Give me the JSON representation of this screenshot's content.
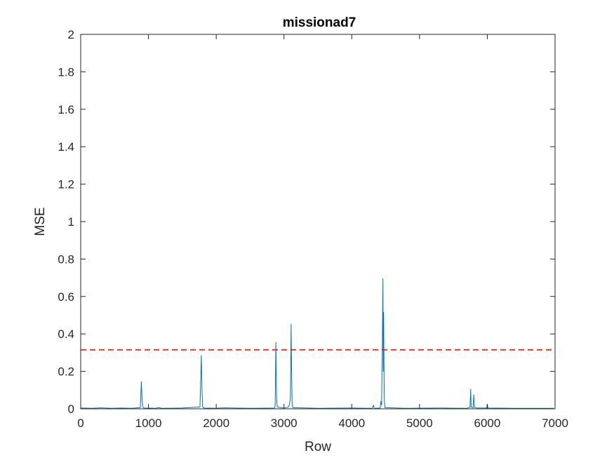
{
  "chart_data": {
    "type": "line",
    "title": "missionad7",
    "xlabel": "Row",
    "ylabel": "MSE",
    "xlim": [
      0,
      7000
    ],
    "ylim": [
      0,
      2
    ],
    "xticks": [
      0,
      1000,
      2000,
      3000,
      4000,
      5000,
      6000,
      7000
    ],
    "xtick_labels": [
      "0",
      "1000",
      "2000",
      "3000",
      "4000",
      "5000",
      "6000",
      "7000"
    ],
    "yticks": [
      0,
      0.2,
      0.4,
      0.6,
      0.8,
      1,
      1.2,
      1.4,
      1.6,
      1.8,
      2
    ],
    "ytick_labels": [
      "0",
      "0.2",
      "0.4",
      "0.6",
      "0.8",
      "1",
      "1.2",
      "1.4",
      "1.6",
      "1.8",
      "2"
    ],
    "grid": false,
    "series": [
      {
        "color": "#0072bd",
        "baseline_value": 0.003,
        "x_end": 6980,
        "points": [
          [
            0,
            0.004
          ],
          [
            150,
            0.003
          ],
          [
            300,
            0.005
          ],
          [
            450,
            0.003
          ],
          [
            600,
            0.004
          ],
          [
            750,
            0.003
          ],
          [
            880,
            0.006
          ],
          [
            895,
            0.145
          ],
          [
            905,
            0.06
          ],
          [
            915,
            0.01
          ],
          [
            930,
            0.004
          ],
          [
            1100,
            0.003
          ],
          [
            1150,
            0.006
          ],
          [
            1200,
            0.003
          ],
          [
            1500,
            0.004
          ],
          [
            1760,
            0.01
          ],
          [
            1770,
            0.14
          ],
          [
            1780,
            0.285
          ],
          [
            1790,
            0.1
          ],
          [
            1800,
            0.01
          ],
          [
            1820,
            0.004
          ],
          [
            2000,
            0.003
          ],
          [
            2100,
            0.005
          ],
          [
            2500,
            0.003
          ],
          [
            2860,
            0.004
          ],
          [
            2870,
            0.02
          ],
          [
            2880,
            0.355
          ],
          [
            2890,
            0.06
          ],
          [
            2900,
            0.01
          ],
          [
            2950,
            0.006
          ],
          [
            3000,
            0.004
          ],
          [
            3060,
            0.008
          ],
          [
            3080,
            0.02
          ],
          [
            3095,
            0.06
          ],
          [
            3105,
            0.452
          ],
          [
            3112,
            0.2
          ],
          [
            3120,
            0.03
          ],
          [
            3130,
            0.006
          ],
          [
            3500,
            0.003
          ],
          [
            4000,
            0.004
          ],
          [
            4300,
            0.003
          ],
          [
            4320,
            0.02
          ],
          [
            4330,
            0.003
          ],
          [
            4420,
            0.004
          ],
          [
            4430,
            0.04
          ],
          [
            4440,
            0.02
          ],
          [
            4450,
            0.3
          ],
          [
            4460,
            0.695
          ],
          [
            4465,
            0.2
          ],
          [
            4470,
            0.515
          ],
          [
            4480,
            0.05
          ],
          [
            4490,
            0.006
          ],
          [
            4800,
            0.003
          ],
          [
            5300,
            0.004
          ],
          [
            5700,
            0.003
          ],
          [
            5745,
            0.008
          ],
          [
            5755,
            0.105
          ],
          [
            5762,
            0.01
          ],
          [
            5790,
            0.005
          ],
          [
            5800,
            0.075
          ],
          [
            5810,
            0.008
          ],
          [
            5850,
            0.004
          ],
          [
            5990,
            0.004
          ],
          [
            6000,
            0.025
          ],
          [
            6010,
            0.004
          ],
          [
            6400,
            0.003
          ],
          [
            6980,
            0.003
          ]
        ]
      }
    ],
    "threshold": {
      "value": 0.315,
      "color": "#ff0000",
      "style": "dashed"
    }
  }
}
